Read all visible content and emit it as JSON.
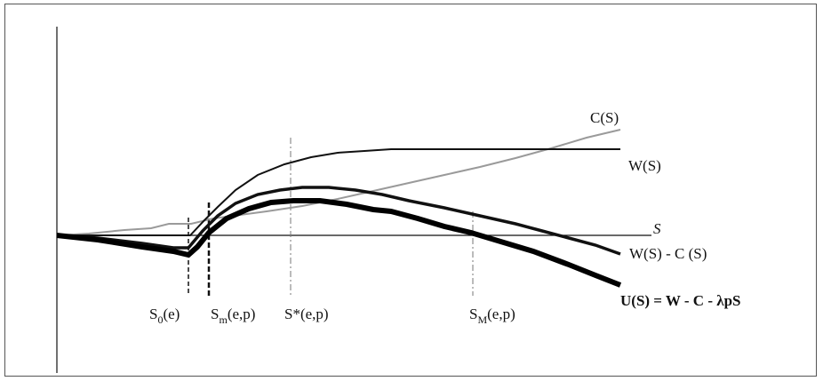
{
  "diagram": {
    "axis_label": "S",
    "curves": {
      "cost": {
        "label": "C(S)",
        "color": "#999999"
      },
      "benefit": {
        "label": "W(S)",
        "color": "#111111"
      },
      "net": {
        "label": "W(S) - C (S)",
        "color": "#111111"
      },
      "utility": {
        "label_bold": "U(S) = W - C - ",
        "label_tail": "λpS",
        "color": "#000000"
      }
    },
    "markers": [
      {
        "main": "S",
        "sub": "0",
        "tail": "(e)"
      },
      {
        "main": "S",
        "sub": "m",
        "tail": "(e,p)"
      },
      {
        "main": "S*",
        "sub": "",
        "tail": "(e,p)"
      },
      {
        "main": "S",
        "sub": "M",
        "tail": "(e,p)"
      }
    ]
  }
}
